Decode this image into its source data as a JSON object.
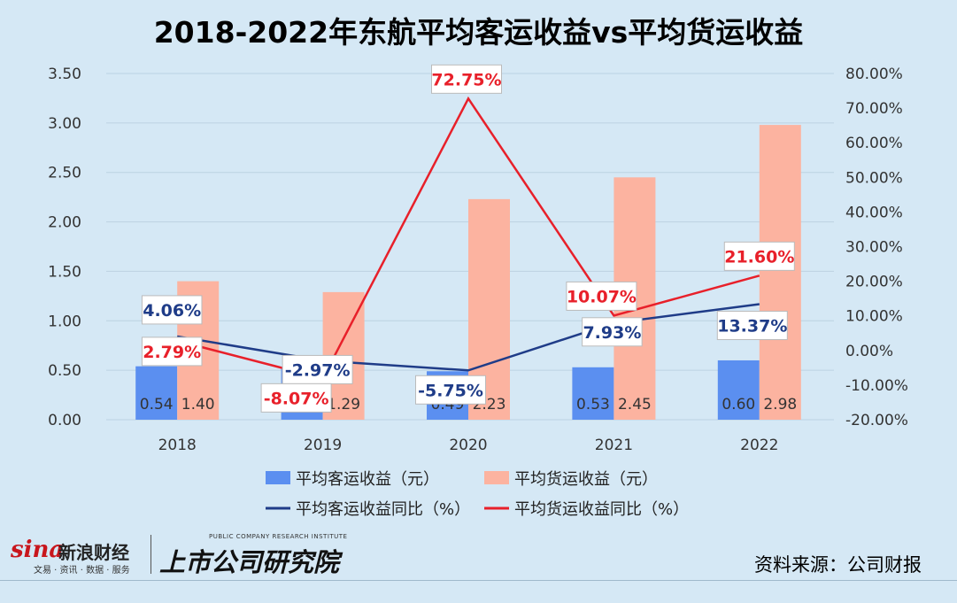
{
  "title": "2018-2022年东航平均客运收益vs平均货运收益",
  "source": "资料来源：公司财报",
  "logos": {
    "sina_word": "sina",
    "sina_cn": "新浪财经",
    "sina_sub": "文易 · 资讯 · 数据 · 服务",
    "institute_en": "PUBLIC COMPANY RESEARCH INSTITUTE",
    "institute_cn": "上市公司研究院"
  },
  "colors": {
    "background": "#d5e8f5",
    "passenger_bar": "#5b8ff0",
    "cargo_bar": "#fcb3a0",
    "passenger_line": "#1f3c88",
    "cargo_line": "#e8202a",
    "label_blue_text": "#1f3c88",
    "label_red_text": "#e8202a"
  },
  "chart_data": {
    "type": "bar+line",
    "categories": [
      "2018",
      "2019",
      "2020",
      "2021",
      "2022"
    ],
    "left_axis": {
      "min": 0,
      "max": 3.5,
      "step": 0.5,
      "ticks": [
        "0.00",
        "0.50",
        "1.00",
        "1.50",
        "2.00",
        "2.50",
        "3.00",
        "3.50"
      ]
    },
    "right_axis": {
      "min": -20,
      "max": 80,
      "step": 10,
      "ticks": [
        "-20.00%",
        "-10.00%",
        "0.00%",
        "10.00%",
        "20.00%",
        "30.00%",
        "40.00%",
        "50.00%",
        "60.00%",
        "70.00%",
        "80.00%"
      ]
    },
    "bar_series": [
      {
        "name": "平均客运收益（元）",
        "values": [
          0.54,
          0.52,
          0.49,
          0.53,
          0.6
        ],
        "labels": [
          "0.54",
          "0.52",
          "0.49",
          "0.53",
          "0.60"
        ]
      },
      {
        "name": "平均货运收益（元）",
        "values": [
          1.4,
          1.29,
          2.23,
          2.45,
          2.98
        ],
        "labels": [
          "1.40",
          "1.29",
          "2.23",
          "2.45",
          "2.98"
        ]
      }
    ],
    "line_series": [
      {
        "name": "平均客运收益同比（%）",
        "values": [
          4.06,
          -2.97,
          -5.75,
          7.93,
          13.37
        ],
        "labels": [
          "4.06%",
          "-2.97%",
          "-5.75%",
          "7.93%",
          "13.37%"
        ]
      },
      {
        "name": "平均货运收益同比（%）",
        "values": [
          2.79,
          -8.07,
          72.75,
          10.07,
          21.6
        ],
        "labels": [
          "2.79%",
          "-8.07%",
          "72.75%",
          "10.07%",
          "21.60%"
        ]
      }
    ],
    "grid": true,
    "legend": "bottom"
  }
}
